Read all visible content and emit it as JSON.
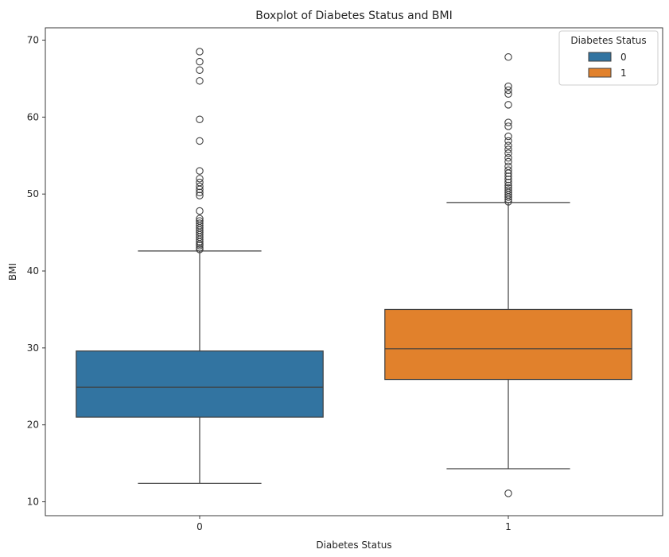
{
  "chart_data": {
    "type": "boxplot",
    "title": "Boxplot of Diabetes Status and BMI",
    "xlabel": "Diabetes Status",
    "ylabel": "BMI",
    "ylim": [
      8.2,
      71.6
    ],
    "yticks": [
      10,
      20,
      30,
      40,
      50,
      60,
      70
    ],
    "categories": [
      "0",
      "1"
    ],
    "grid": false,
    "legend": {
      "title": "Diabetes Status",
      "placement": "top-right",
      "entries": [
        "0",
        "1"
      ]
    },
    "series": [
      {
        "category": "0",
        "color": "#3274a1",
        "whisker_low": 12.4,
        "q1": 21.0,
        "median": 24.9,
        "q3": 29.6,
        "whisker_high": 42.6,
        "outliers": [
          42.8,
          43.0,
          43.3,
          43.5,
          43.8,
          44.1,
          44.4,
          44.7,
          45.0,
          45.3,
          45.6,
          45.9,
          46.2,
          46.5,
          46.8,
          47.8,
          49.8,
          50.2,
          50.6,
          51.0,
          51.5,
          52.0,
          53.0,
          56.9,
          59.7,
          64.7,
          66.1,
          67.2,
          68.5
        ]
      },
      {
        "category": "1",
        "color": "#e1812c",
        "whisker_low": 14.3,
        "q1": 25.9,
        "median": 29.9,
        "q3": 35.0,
        "whisker_high": 48.9,
        "outliers": [
          11.1,
          49.0,
          49.3,
          49.6,
          49.9,
          50.2,
          50.5,
          50.8,
          51.1,
          51.5,
          51.9,
          52.3,
          52.7,
          53.1,
          53.6,
          54.2,
          54.7,
          55.3,
          55.8,
          56.3,
          56.9,
          57.5,
          58.8,
          59.3,
          61.6,
          63.0,
          63.5,
          64.0,
          67.8
        ]
      }
    ]
  }
}
